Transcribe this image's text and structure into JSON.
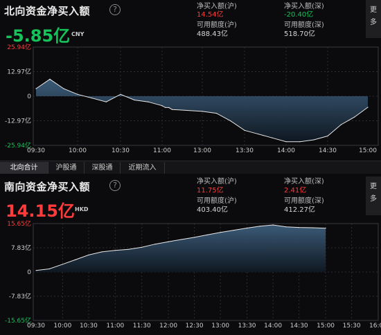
{
  "north": {
    "title": "北向资金净买入额",
    "help": "?",
    "value": "-5.85亿",
    "currency": "CNY",
    "stats": {
      "sh_buy_label": "净买入额(沪)",
      "sh_buy_value": "14.54亿",
      "sz_buy_label": "净买入额(深)",
      "sz_buy_value": "-20.40亿",
      "sh_quota_label": "可用额度(沪)",
      "sh_quota_value": "488.43亿",
      "sz_quota_label": "可用额度(深)",
      "sz_quota_value": "518.70亿"
    },
    "more": "更多",
    "colors": {
      "value": "#16c25a"
    }
  },
  "tabs": [
    "北向合计",
    "沪股通",
    "深股通",
    "近期流入"
  ],
  "south": {
    "title": "南向资金净买入额",
    "help": "?",
    "value": "14.15亿",
    "currency": "HKD",
    "stats": {
      "sh_buy_label": "净买入额(沪)",
      "sh_buy_value": "11.75亿",
      "sz_buy_label": "净买入额(深)",
      "sz_buy_value": "2.41亿",
      "sh_quota_label": "可用额度(沪)",
      "sh_quota_value": "403.40亿",
      "sz_quota_label": "可用额度(深)",
      "sz_quota_value": "412.27亿"
    },
    "more": "更多",
    "colors": {
      "value": "#ff3b3b"
    }
  },
  "chart_data": [
    {
      "type": "area",
      "y_ticks": [
        "25.94亿",
        "12.97亿",
        "0",
        "-12.97亿",
        "-25.94亿"
      ],
      "ylim": [
        -25.94,
        25.94
      ],
      "x_ticks": [
        "09:30",
        "10:00",
        "10:30",
        "11:00",
        "13:00",
        "13:30",
        "14:00",
        "14:30",
        "15:00"
      ],
      "x": [
        "09:30",
        "09:40",
        "09:50",
        "10:00",
        "10:10",
        "10:20",
        "10:30",
        "10:40",
        "10:50",
        "11:00",
        "11:10",
        "11:20",
        "11:30",
        "13:00",
        "13:10",
        "13:20",
        "13:30",
        "13:40",
        "13:50",
        "14:00",
        "14:10",
        "14:20",
        "14:30",
        "14:40",
        "14:50",
        "15:00"
      ],
      "values": [
        4,
        9,
        4,
        1,
        -1,
        -3,
        1,
        -2,
        -3,
        -5,
        -6,
        -6,
        -7,
        -8,
        -9,
        -13,
        -18,
        -20,
        -22,
        -24,
        -24,
        -23,
        -21,
        -15,
        -11,
        -5.85
      ],
      "grid": true
    },
    {
      "type": "area",
      "y_ticks": [
        "15.65亿",
        "7.83亿",
        "0",
        "-7.83亿",
        "-15.65亿"
      ],
      "ylim": [
        -15.65,
        15.65
      ],
      "x_ticks": [
        "09:30",
        "10:00",
        "10:30",
        "11:00",
        "11:30",
        "12:00",
        "12:30",
        "13:00",
        "13:30",
        "14:00",
        "14:30",
        "15:00",
        "15:30",
        "16:00"
      ],
      "x": [
        "09:30",
        "09:45",
        "10:00",
        "10:15",
        "10:30",
        "10:45",
        "11:00",
        "11:15",
        "11:30",
        "11:45",
        "12:00",
        "12:15",
        "12:30",
        "12:45",
        "13:00",
        "13:15",
        "13:30",
        "13:45",
        "14:00",
        "14:15",
        "14:30",
        "14:45",
        "15:00"
      ],
      "values": [
        0.5,
        1.0,
        2.5,
        4.0,
        5.5,
        6.5,
        7.0,
        7.3,
        8.0,
        9.0,
        9.8,
        10.5,
        11.2,
        12.0,
        12.8,
        13.5,
        14.2,
        14.8,
        15.2,
        14.6,
        14.4,
        14.3,
        14.15
      ],
      "grid": true
    }
  ]
}
